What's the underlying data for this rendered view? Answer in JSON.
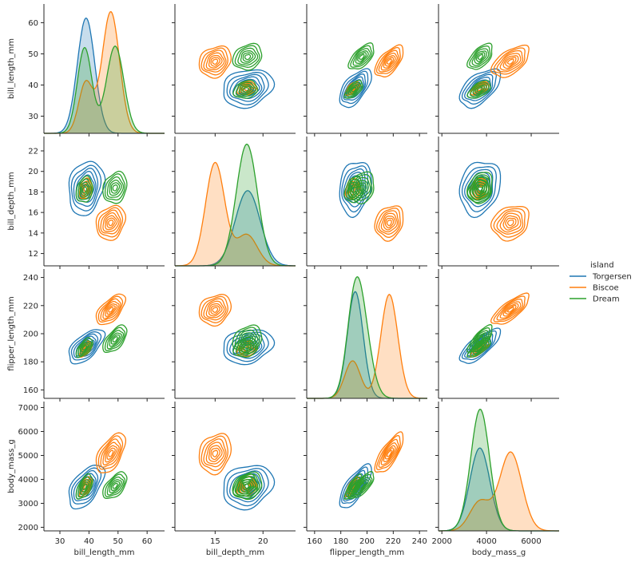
{
  "chart_data": {
    "type": "pairplot",
    "kind": "kde",
    "variables": [
      "bill_length_mm",
      "bill_depth_mm",
      "flipper_length_mm",
      "body_mass_g"
    ],
    "ranges": {
      "bill_length_mm": [
        24.5,
        66.0
      ],
      "bill_depth_mm": [
        10.8,
        23.4
      ],
      "flipper_length_mm": [
        154,
        246
      ],
      "body_mass_g": [
        1850,
        7250
      ]
    },
    "ticks": {
      "bill_length_mm": [
        30,
        40,
        50,
        60
      ],
      "bill_depth_mm": [
        12,
        14,
        16,
        18,
        20,
        22
      ],
      "bill_depth_mm_x": [
        15,
        20
      ],
      "flipper_length_mm": [
        160,
        180,
        200,
        220,
        240
      ],
      "body_mass_g_y": [
        2000,
        3000,
        4000,
        5000,
        6000,
        7000
      ],
      "body_mass_g_x": [
        2000,
        4000,
        6000
      ]
    },
    "legend": {
      "title": "island",
      "placement": "right",
      "entries": [
        {
          "label": "Torgersen",
          "color": "#1f77b4"
        },
        {
          "label": "Biscoe",
          "color": "#ff7f0e"
        },
        {
          "label": "Dream",
          "color": "#2ca02c"
        }
      ]
    },
    "series": [
      {
        "name": "Torgersen",
        "color": "#1f77b4",
        "diag_scale": 0.64,
        "clusters": [
          {
            "w": 1.0,
            "mean": {
              "bill_length_mm": 39,
              "bill_depth_mm": 18.4,
              "flipper_length_mm": 191,
              "body_mass_g": 3700
            },
            "sd": {
              "bill_length_mm": 3.0,
              "bill_depth_mm": 1.3,
              "flipper_length_mm": 6,
              "body_mass_g": 450
            }
          }
        ]
      },
      {
        "name": "Biscoe",
        "color": "#ff7f0e",
        "diag_scale": 0.9,
        "clusters": [
          {
            "w": 0.25,
            "mean": {
              "bill_length_mm": 38.9,
              "bill_depth_mm": 18.3,
              "flipper_length_mm": 189,
              "body_mass_g": 3700
            },
            "sd": {
              "bill_length_mm": 2.4,
              "bill_depth_mm": 1.1,
              "flipper_length_mm": 6,
              "body_mass_g": 450
            }
          },
          {
            "w": 0.75,
            "mean": {
              "bill_length_mm": 47.5,
              "bill_depth_mm": 15.0,
              "flipper_length_mm": 217,
              "body_mass_g": 5080
            },
            "sd": {
              "bill_length_mm": 3.0,
              "bill_depth_mm": 1.0,
              "flipper_length_mm": 6.5,
              "body_mass_g": 500
            }
          }
        ]
      },
      {
        "name": "Dream",
        "color": "#2ca02c",
        "diag_scale": 0.88,
        "clusters": [
          {
            "w": 0.45,
            "mean": {
              "bill_length_mm": 38.5,
              "bill_depth_mm": 18.2,
              "flipper_length_mm": 190,
              "body_mass_g": 3690
            },
            "sd": {
              "bill_length_mm": 2.5,
              "bill_depth_mm": 1.1,
              "flipper_length_mm": 6,
              "body_mass_g": 450
            }
          },
          {
            "w": 0.55,
            "mean": {
              "bill_length_mm": 49,
              "bill_depth_mm": 18.4,
              "flipper_length_mm": 196,
              "body_mass_g": 3730
            },
            "sd": {
              "bill_length_mm": 3.0,
              "bill_depth_mm": 1.1,
              "flipper_length_mm": 7,
              "body_mass_g": 400
            }
          }
        ]
      }
    ]
  }
}
